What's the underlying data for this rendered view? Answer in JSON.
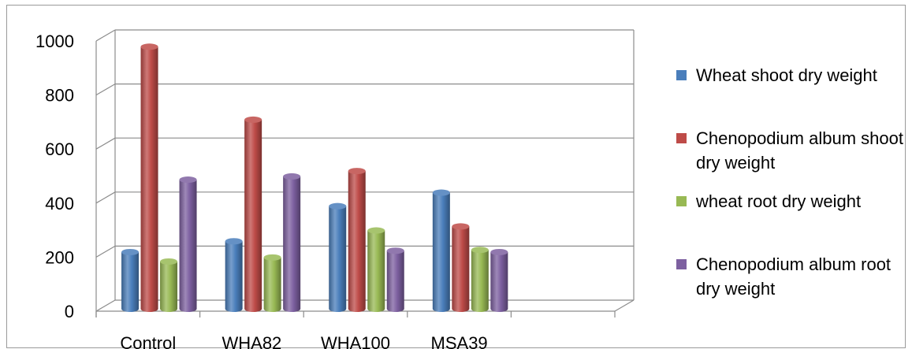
{
  "chart_data": {
    "type": "bar",
    "categories": [
      "Control",
      "WHA82",
      "WHA100",
      "MSA39"
    ],
    "series": [
      {
        "name": "Wheat shoot dry weight",
        "values": [
          210,
          250,
          380,
          430
        ],
        "color": "#4a7ebb"
      },
      {
        "name": "Chenopodium album shoot dry weight",
        "values": [
          970,
          700,
          510,
          305
        ],
        "color": "#be4b48"
      },
      {
        "name": "wheat root dry weight",
        "values": [
          175,
          190,
          290,
          218
        ],
        "color": "#98b954"
      },
      {
        "name": "Chenopodium album root dry weight",
        "values": [
          478,
          490,
          215,
          210
        ],
        "color": "#7d60a0"
      }
    ],
    "y_ticks": [
      "0",
      "200",
      "400",
      "600",
      "800",
      "1000"
    ],
    "ylim": [
      0,
      1000
    ],
    "grid": true,
    "three_d": true,
    "legend_position": "right",
    "title": "",
    "xlabel": "",
    "ylabel": ""
  }
}
